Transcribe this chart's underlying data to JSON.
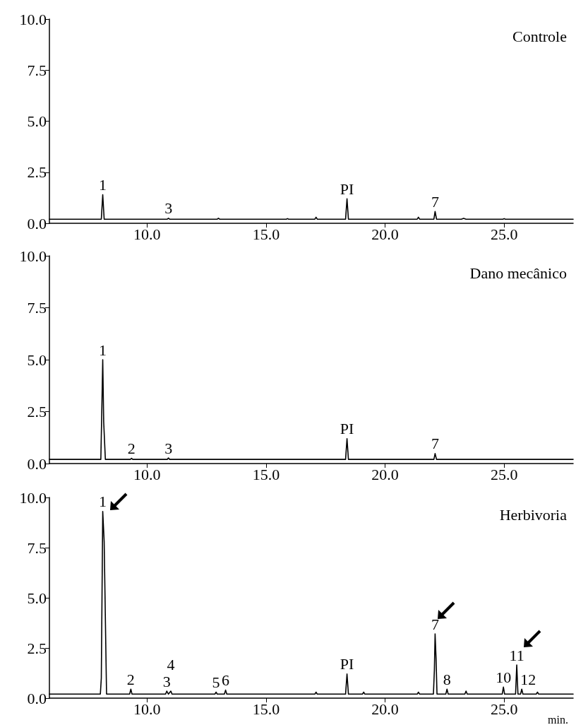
{
  "chart_data": [
    {
      "type": "line",
      "title": "Controle",
      "xlim": [
        5.9,
        27.9
      ],
      "ylim": [
        0,
        10
      ],
      "xticks": [
        {
          "value": 10,
          "label": "10.0"
        },
        {
          "value": 15,
          "label": "15.0"
        },
        {
          "value": 20,
          "label": "20.0"
        },
        {
          "value": 25,
          "label": "25.0"
        }
      ],
      "yticks": [
        {
          "value": 0,
          "label": "0.0"
        },
        {
          "value": 2.5,
          "label": "2.5"
        },
        {
          "value": 5,
          "label": "5.0"
        },
        {
          "value": 7.5,
          "label": "7.5"
        },
        {
          "value": 10,
          "label": "10.0"
        }
      ],
      "marker": "none",
      "line_style": "solid",
      "grid": false,
      "series": [
        {
          "color": "#000000",
          "x": [
            5.9,
            8.08,
            8.14,
            8.2,
            10.85,
            10.9,
            10.95,
            12.95,
            13.0,
            13.05,
            15.85,
            15.9,
            15.95,
            17.05,
            17.1,
            17.15,
            18.34,
            18.4,
            18.46,
            21.35,
            21.4,
            21.45,
            22.05,
            22.1,
            22.16,
            23.2,
            23.3,
            23.4,
            24.95,
            25.0,
            25.05,
            27.9
          ],
          "values": [
            0.2,
            0.2,
            1.4,
            0.2,
            0.2,
            0.25,
            0.2,
            0.2,
            0.25,
            0.2,
            0.2,
            0.23,
            0.2,
            0.2,
            0.3,
            0.2,
            0.2,
            1.2,
            0.2,
            0.2,
            0.3,
            0.2,
            0.2,
            0.58,
            0.2,
            0.2,
            0.24,
            0.2,
            0.2,
            0.23,
            0.2,
            0.2
          ]
        }
      ],
      "annotations": [
        {
          "text": "1",
          "x": 8.14,
          "y": 1.4
        },
        {
          "text": "3",
          "x": 10.9,
          "y": 0.25
        },
        {
          "text": "PI",
          "x": 18.4,
          "y": 1.2
        },
        {
          "text": "7",
          "x": 22.1,
          "y": 0.58
        }
      ]
    },
    {
      "type": "line",
      "title": "Dano mecânico",
      "xlim": [
        5.9,
        27.9
      ],
      "ylim": [
        0,
        10
      ],
      "xticks": [
        {
          "value": 10,
          "label": "10.0"
        },
        {
          "value": 15,
          "label": "15.0"
        },
        {
          "value": 20,
          "label": "20.0"
        },
        {
          "value": 25,
          "label": "25.0"
        }
      ],
      "yticks": [
        {
          "value": 0,
          "label": "0.0"
        },
        {
          "value": 2.5,
          "label": "2.5"
        },
        {
          "value": 5,
          "label": "5.0"
        },
        {
          "value": 7.5,
          "label": "7.5"
        },
        {
          "value": 10,
          "label": "10.0"
        }
      ],
      "marker": "none",
      "line_style": "solid",
      "grid": false,
      "series": [
        {
          "color": "#000000",
          "x": [
            5.9,
            8.06,
            8.1,
            8.14,
            8.18,
            8.25,
            9.3,
            9.35,
            9.4,
            10.85,
            10.9,
            10.95,
            18.34,
            18.4,
            18.46,
            22.05,
            22.1,
            22.16,
            27.9
          ],
          "values": [
            0.2,
            0.2,
            2.5,
            5.0,
            2.0,
            0.2,
            0.2,
            0.25,
            0.2,
            0.2,
            0.27,
            0.2,
            0.2,
            1.2,
            0.2,
            0.2,
            0.48,
            0.2,
            0.2
          ]
        }
      ],
      "annotations": [
        {
          "text": "1",
          "x": 8.14,
          "y": 5.0
        },
        {
          "text": "2",
          "x": 9.35,
          "y": 0.25
        },
        {
          "text": "3",
          "x": 10.9,
          "y": 0.27
        },
        {
          "text": "PI",
          "x": 18.4,
          "y": 1.2
        },
        {
          "text": "7",
          "x": 22.1,
          "y": 0.48
        }
      ]
    },
    {
      "type": "line",
      "title": "Herbivoria",
      "xlabel": "min.",
      "xlim": [
        5.9,
        27.9
      ],
      "ylim": [
        0,
        10
      ],
      "xticks": [
        {
          "value": 10,
          "label": "10.0"
        },
        {
          "value": 15,
          "label": "15.0"
        },
        {
          "value": 20,
          "label": "20.0"
        },
        {
          "value": 25,
          "label": "25.0"
        }
      ],
      "yticks": [
        {
          "value": 0,
          "label": "0.0"
        },
        {
          "value": 2.5,
          "label": "2.5"
        },
        {
          "value": 5,
          "label": "5.0"
        },
        {
          "value": 7.5,
          "label": "7.5"
        },
        {
          "value": 10,
          "label": "10.0"
        }
      ],
      "marker": "none",
      "line_style": "solid",
      "grid": false,
      "series": [
        {
          "color": "#000000",
          "x": [
            5.9,
            8.04,
            8.08,
            8.14,
            8.2,
            8.3,
            9.27,
            9.32,
            9.37,
            10.78,
            10.83,
            10.9,
            11.0,
            11.05,
            12.85,
            12.9,
            12.95,
            13.25,
            13.3,
            13.35,
            17.05,
            17.1,
            17.15,
            18.34,
            18.4,
            18.46,
            19.05,
            19.1,
            19.15,
            21.35,
            21.4,
            21.45,
            22.03,
            22.07,
            22.1,
            22.14,
            22.18,
            22.55,
            22.6,
            22.65,
            23.35,
            23.4,
            23.45,
            24.92,
            24.97,
            25.02,
            25.48,
            25.53,
            25.58,
            25.69,
            25.74,
            25.79,
            26.35,
            26.4,
            26.45,
            27.9
          ],
          "values": [
            0.2,
            0.2,
            1.0,
            9.3,
            7.8,
            0.2,
            0.2,
            0.45,
            0.2,
            0.2,
            0.35,
            0.2,
            0.35,
            0.2,
            0.2,
            0.3,
            0.2,
            0.2,
            0.4,
            0.2,
            0.2,
            0.3,
            0.2,
            0.2,
            1.2,
            0.2,
            0.2,
            0.3,
            0.2,
            0.2,
            0.3,
            0.2,
            0.2,
            1.4,
            3.2,
            2.0,
            0.2,
            0.2,
            0.45,
            0.2,
            0.2,
            0.35,
            0.2,
            0.2,
            0.55,
            0.2,
            0.2,
            1.65,
            0.2,
            0.2,
            0.45,
            0.2,
            0.2,
            0.3,
            0.2,
            0.2
          ]
        }
      ],
      "annotations": [
        {
          "text": "1",
          "x": 8.14,
          "y": 9.3
        },
        {
          "text": "2",
          "x": 9.32,
          "y": 0.45
        },
        {
          "text": "3",
          "x": 10.83,
          "y": 0.35
        },
        {
          "text": "4",
          "x": 11.0,
          "y": 0.35
        },
        {
          "text": "5",
          "x": 12.9,
          "y": 0.3
        },
        {
          "text": "6",
          "x": 13.3,
          "y": 0.4
        },
        {
          "text": "PI",
          "x": 18.4,
          "y": 1.2
        },
        {
          "text": "7",
          "x": 22.1,
          "y": 3.2
        },
        {
          "text": "8",
          "x": 22.6,
          "y": 0.45
        },
        {
          "text": "10",
          "x": 24.97,
          "y": 0.55
        },
        {
          "text": "11",
          "x": 25.53,
          "y": 1.65
        },
        {
          "text": "12",
          "x": 25.74,
          "y": 0.45
        }
      ]
    }
  ]
}
